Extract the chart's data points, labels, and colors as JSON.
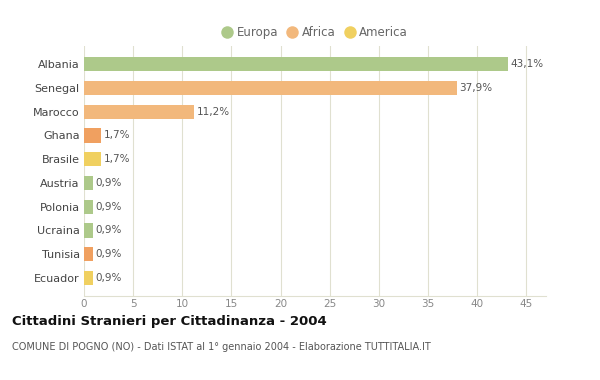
{
  "countries": [
    "Albania",
    "Senegal",
    "Marocco",
    "Ghana",
    "Brasile",
    "Austria",
    "Polonia",
    "Ucraina",
    "Tunisia",
    "Ecuador"
  ],
  "values": [
    43.1,
    37.9,
    11.2,
    1.7,
    1.7,
    0.9,
    0.9,
    0.9,
    0.9,
    0.9
  ],
  "labels": [
    "43,1%",
    "37,9%",
    "11,2%",
    "1,7%",
    "1,7%",
    "0,9%",
    "0,9%",
    "0,9%",
    "0,9%",
    "0,9%"
  ],
  "colors": [
    "#adc98a",
    "#f2b87c",
    "#f2b87c",
    "#f0a060",
    "#f0d060",
    "#adc98a",
    "#adc98a",
    "#adc98a",
    "#f0a060",
    "#f0d060"
  ],
  "legend_labels": [
    "Europa",
    "Africa",
    "America"
  ],
  "legend_colors": [
    "#adc98a",
    "#f2b87c",
    "#f0d060"
  ],
  "title": "Cittadini Stranieri per Cittadinanza - 2004",
  "subtitle": "COMUNE DI POGNO (NO) - Dati ISTAT al 1° gennaio 2004 - Elaborazione TUTTITALIA.IT",
  "xlim": [
    0,
    47
  ],
  "xticks": [
    0,
    5,
    10,
    15,
    20,
    25,
    30,
    35,
    40,
    45
  ],
  "background_color": "#ffffff",
  "grid_color": "#e0e0d0",
  "bar_height": 0.6
}
